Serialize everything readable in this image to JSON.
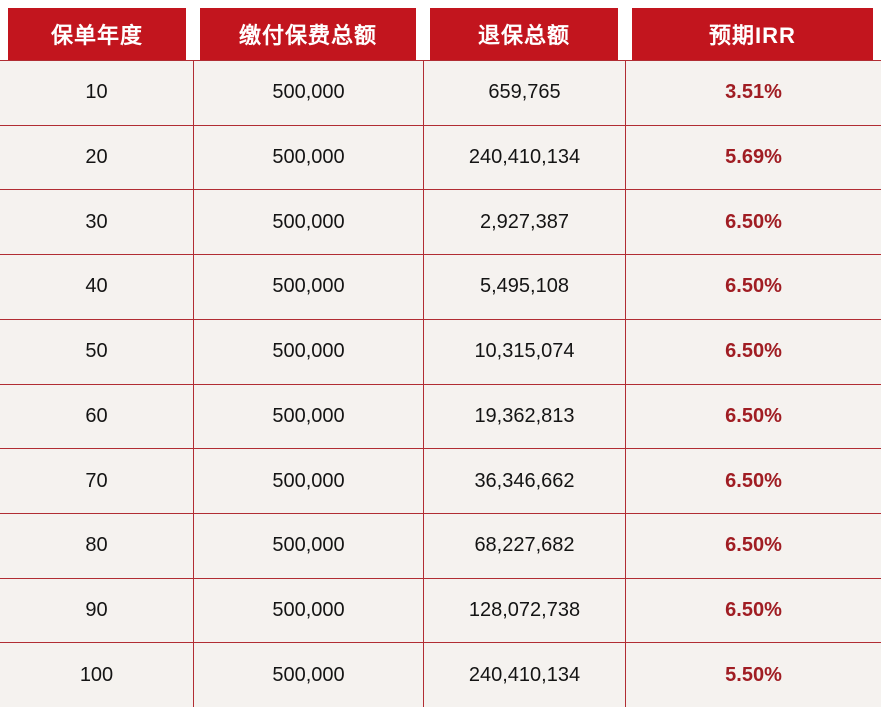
{
  "chart_data": {
    "type": "table",
    "columns": [
      "保单年度",
      "缴付保费总额",
      "退保总额",
      "预期IRR"
    ],
    "rows": [
      {
        "policy_year": "10",
        "total_premium": "500,000",
        "surrender_total": "659,765",
        "expected_irr": "3.51%"
      },
      {
        "policy_year": "20",
        "total_premium": "500,000",
        "surrender_total": "240,410,134",
        "expected_irr": "5.69%"
      },
      {
        "policy_year": "30",
        "total_premium": "500,000",
        "surrender_total": "2,927,387",
        "expected_irr": "6.50%"
      },
      {
        "policy_year": "40",
        "total_premium": "500,000",
        "surrender_total": "5,495,108",
        "expected_irr": "6.50%"
      },
      {
        "policy_year": "50",
        "total_premium": "500,000",
        "surrender_total": "10,315,074",
        "expected_irr": "6.50%"
      },
      {
        "policy_year": "60",
        "total_premium": "500,000",
        "surrender_total": "19,362,813",
        "expected_irr": "6.50%"
      },
      {
        "policy_year": "70",
        "total_premium": "500,000",
        "surrender_total": "36,346,662",
        "expected_irr": "6.50%"
      },
      {
        "policy_year": "80",
        "total_premium": "500,000",
        "surrender_total": "68,227,682",
        "expected_irr": "6.50%"
      },
      {
        "policy_year": "90",
        "total_premium": "500,000",
        "surrender_total": "128,072,738",
        "expected_irr": "6.50%"
      },
      {
        "policy_year": "100",
        "total_premium": "500,000",
        "surrender_total": "240,410,134",
        "expected_irr": "5.50%"
      }
    ]
  },
  "colors": {
    "header_bg": "#c2151e",
    "header_text": "#ffffff",
    "row_bg": "#f5f2ef",
    "divider": "#b12d33",
    "irr_text": "#a01d23",
    "body_text": "#141414"
  }
}
